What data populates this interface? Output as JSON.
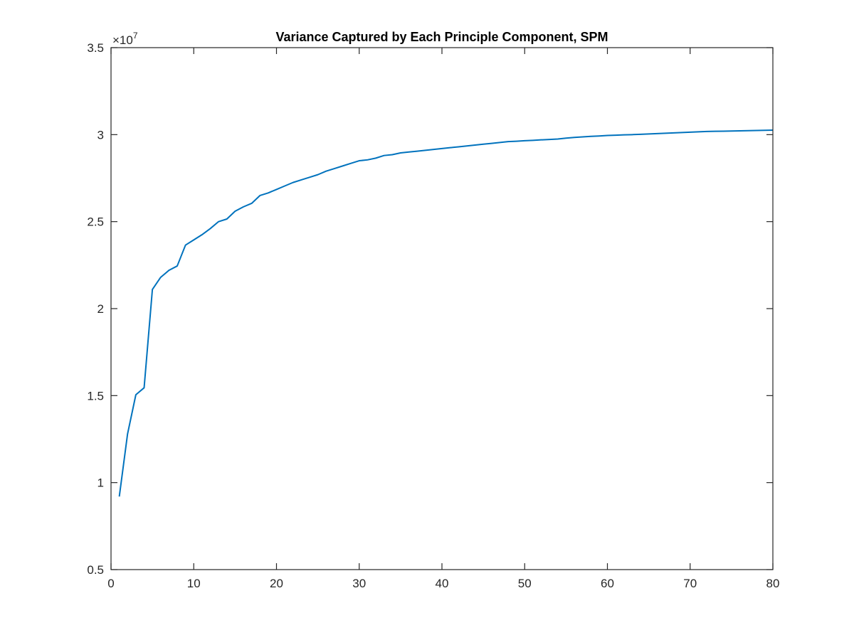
{
  "chart_data": {
    "type": "line",
    "title": "Variance Captured by Each Principle Component, SPM",
    "xlabel": "",
    "ylabel": "",
    "xlim": [
      0,
      80
    ],
    "ylim": [
      0.5,
      3.5
    ],
    "y_multiplier_label": {
      "times": "×10",
      "exponent": "7"
    },
    "x_ticks": [
      0,
      10,
      20,
      30,
      40,
      50,
      60,
      70,
      80
    ],
    "y_ticks": [
      0.5,
      1,
      1.5,
      2,
      2.5,
      3,
      3.5
    ],
    "x_tick_labels": [
      "0",
      "10",
      "20",
      "30",
      "40",
      "50",
      "60",
      "70",
      "80"
    ],
    "y_tick_labels": [
      "0.5",
      "1",
      "1.5",
      "2",
      "2.5",
      "3",
      "3.5"
    ],
    "grid": false,
    "line_color": "#0072bd",
    "series": [
      {
        "x": [
          1,
          2,
          3,
          4,
          5,
          6,
          7,
          8,
          9,
          10,
          11,
          12,
          13,
          14,
          15,
          16,
          17,
          18,
          19,
          20,
          21,
          22,
          23,
          24,
          25,
          26,
          27,
          28,
          29,
          30,
          31,
          32,
          33,
          34,
          35,
          36,
          37,
          38,
          39,
          40,
          41,
          42,
          43,
          44,
          45,
          46,
          47,
          48,
          49,
          50,
          51,
          52,
          53,
          54,
          55,
          56,
          57,
          58,
          59,
          60,
          61,
          62,
          63,
          64,
          65,
          66,
          67,
          68,
          69,
          70,
          71,
          72,
          73,
          74,
          75,
          76,
          77,
          78,
          79,
          80
        ],
        "values": [
          0.92,
          1.28,
          1.505,
          1.545,
          2.11,
          2.18,
          2.22,
          2.245,
          2.365,
          2.395,
          2.425,
          2.46,
          2.5,
          2.515,
          2.56,
          2.585,
          2.605,
          2.65,
          2.665,
          2.685,
          2.705,
          2.725,
          2.74,
          2.755,
          2.77,
          2.79,
          2.805,
          2.82,
          2.835,
          2.85,
          2.855,
          2.865,
          2.88,
          2.885,
          2.895,
          2.9,
          2.905,
          2.91,
          2.915,
          2.92,
          2.925,
          2.93,
          2.935,
          2.94,
          2.945,
          2.95,
          2.955,
          2.96,
          2.962,
          2.965,
          2.967,
          2.97,
          2.972,
          2.975,
          2.98,
          2.984,
          2.987,
          2.99,
          2.992,
          2.995,
          2.997,
          2.999,
          3.0,
          3.002,
          3.004,
          3.006,
          3.008,
          3.01,
          3.012,
          3.014,
          3.016,
          3.018,
          3.019,
          3.02,
          3.021,
          3.022,
          3.023,
          3.024,
          3.025,
          3.026
        ]
      }
    ]
  }
}
